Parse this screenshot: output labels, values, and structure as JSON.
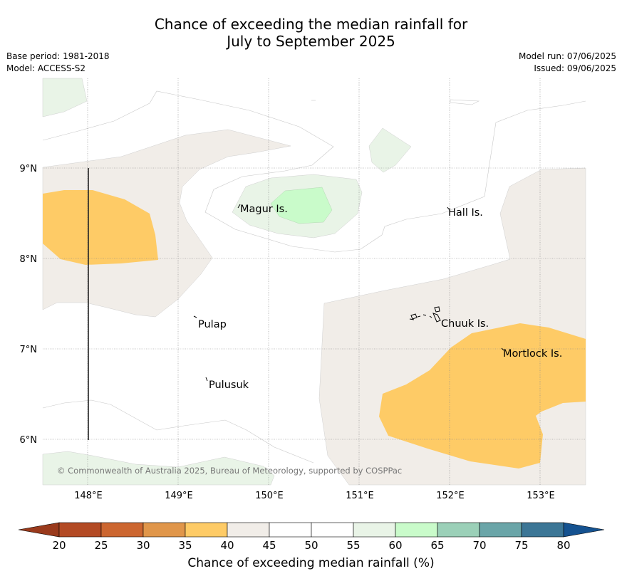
{
  "title": {
    "line1": "Chance of exceeding the median rainfall for",
    "line2": "July to September 2025"
  },
  "meta_left": {
    "base_period": "Base period: 1981-2018",
    "model": "Model: ACCESS-S2"
  },
  "meta_right": {
    "model_run": "Model run: 07/06/2025",
    "issued": "Issued: 09/06/2025"
  },
  "map": {
    "lon_ticks": [
      "148°E",
      "149°E",
      "150°E",
      "151°E",
      "152°E",
      "153°E"
    ],
    "lat_ticks": [
      "9°N",
      "8°N",
      "7°N",
      "6°N"
    ],
    "places": [
      "Magur Is.",
      "Hall Is.",
      "Pulap",
      "Chuuk Is.",
      "Mortlock Is.",
      "Pulusuk"
    ],
    "copyright": "© Commonwealth of Australia 2025, Bureau of Meteorology, supported by COSPPac"
  },
  "legend": {
    "title": "Chance of exceeding median rainfall (%)",
    "ticks": [
      "20",
      "25",
      "30",
      "35",
      "40",
      "45",
      "50",
      "55",
      "60",
      "65",
      "70",
      "75",
      "80"
    ],
    "colors": [
      "#b34a24",
      "#cc6630",
      "#e0964a",
      "#fecb66",
      "#f1ede8",
      "#ffffff",
      "#ffffff",
      "#e9f4e7",
      "#c9fbca",
      "#9bd0b8",
      "#6aa5a8",
      "#3c7696"
    ],
    "low_arrow_color": "#9a3a1c",
    "high_arrow_color": "#155290"
  }
}
